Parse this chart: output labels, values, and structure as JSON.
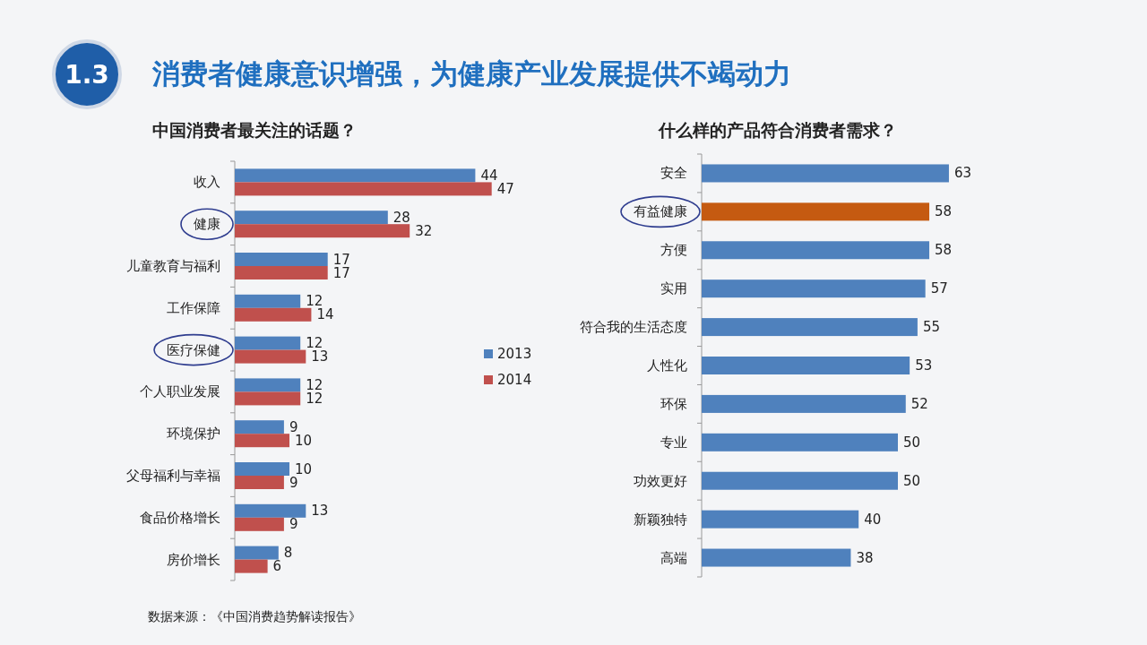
{
  "chart_data": [
    {
      "type": "bar",
      "orientation": "horizontal",
      "title": "中国消费者最关注的话题？",
      "categories": [
        "收入",
        "健康",
        "儿童教育与福利",
        "工作保障",
        "医疗保健",
        "个人职业发展",
        "环境保护",
        "父母福利与幸福",
        "食品价格增长",
        "房价增长"
      ],
      "series": [
        {
          "name": "2013",
          "color": "#4f81bd",
          "values": [
            44,
            28,
            17,
            12,
            12,
            12,
            9,
            10,
            13,
            8
          ]
        },
        {
          "name": "2014",
          "color": "#c0504d",
          "values": [
            47,
            32,
            17,
            14,
            13,
            12,
            10,
            9,
            9,
            6
          ]
        }
      ],
      "data_labels": true,
      "legend": "right",
      "annotations": [
        "1.3",
        "消费者健康意识增强，为健康产业发展提供不竭动力",
        "数据来源：《中国消费趋势解读报告》"
      ]
    },
    {
      "type": "bar",
      "orientation": "horizontal",
      "title": "什么样的产品符合消费者需求？",
      "categories": [
        "安全",
        "有益健康",
        "方便",
        "实用",
        "符合我的生活态度",
        "人性化",
        "环保",
        "专业",
        "功效更好",
        "新颖独特",
        "高端"
      ],
      "values": [
        63,
        58,
        58,
        57,
        55,
        53,
        52,
        50,
        50,
        40,
        38
      ],
      "colors": [
        "#4f81bd",
        "#c55a11",
        "#4f81bd",
        "#4f81bd",
        "#4f81bd",
        "#4f81bd",
        "#4f81bd",
        "#4f81bd",
        "#4f81bd",
        "#4f81bd",
        "#4f81bd"
      ],
      "data_labels": true
    }
  ]
}
